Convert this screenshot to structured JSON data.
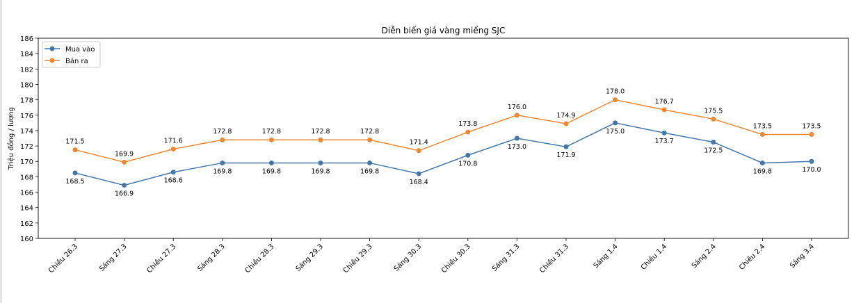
{
  "chart_data": {
    "type": "line",
    "title": "Diễn biến giá vàng miếng SJC",
    "xlabel": "",
    "ylabel": "Triệu đồng / lượng",
    "ylim": [
      160,
      186
    ],
    "yticks": [
      160,
      162,
      164,
      166,
      168,
      170,
      172,
      174,
      176,
      178,
      180,
      182,
      184,
      186
    ],
    "grid": false,
    "legend_placement": "top-left",
    "categories": [
      "Chiều 26.3",
      "Sáng 27.3",
      "Chiều 27.3",
      "Sáng 28.3",
      "Chiều 28.3",
      "Sáng 29.3",
      "Chiều 29.3",
      "Sáng 30.3",
      "Chiều 30.3",
      "Sáng 31.3",
      "Chiều 31.3",
      "Sáng 1.4",
      "Chiều 1.4",
      "Sáng 2.4",
      "Chiều 2.4",
      "Sáng 3.4"
    ],
    "series": [
      {
        "name": "Mua vào",
        "color": "#4477aa",
        "label_position": "below",
        "values": [
          168.5,
          166.9,
          168.6,
          169.8,
          169.8,
          169.8,
          169.8,
          168.4,
          170.8,
          173.0,
          171.9,
          175.0,
          173.7,
          172.5,
          169.8,
          170.0
        ]
      },
      {
        "name": "Bán ra",
        "color": "#ee8833",
        "label_position": "above",
        "values": [
          171.5,
          169.9,
          171.6,
          172.8,
          172.8,
          172.8,
          172.8,
          171.4,
          173.8,
          176.0,
          174.9,
          178.0,
          176.7,
          175.5,
          173.5,
          173.5
        ]
      }
    ]
  }
}
